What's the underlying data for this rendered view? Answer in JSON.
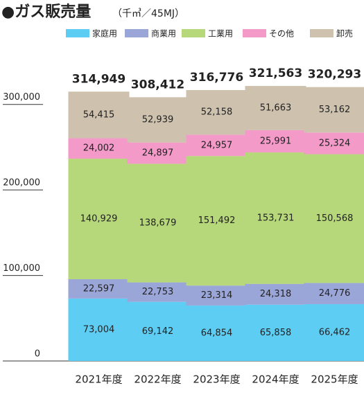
{
  "chart_data": {
    "type": "stacked-bar",
    "title": "●ガス販売量",
    "subtitle": "（千㎥／45MJ）",
    "categories": [
      "2021年度",
      "2022年度",
      "2023年度",
      "2024年度",
      "2025年度"
    ],
    "series": [
      {
        "name": "家庭用",
        "color": "#5ecdf3",
        "values": [
          73004,
          69142,
          64854,
          65858,
          66462
        ],
        "value_labels": [
          "73,004",
          "69,142",
          "64,854",
          "65,858",
          "66,462"
        ]
      },
      {
        "name": "商業用",
        "color": "#9ba6d8",
        "values": [
          22597,
          22753,
          23314,
          24318,
          24776
        ],
        "value_labels": [
          "22,597",
          "22,753",
          "23,314",
          "24,318",
          "24,776"
        ]
      },
      {
        "name": "工業用",
        "color": "#b6d77a",
        "values": [
          140929,
          138679,
          151492,
          153731,
          150568
        ],
        "value_labels": [
          "140,929",
          "138,679",
          "151,492",
          "153,731",
          "150,568"
        ]
      },
      {
        "name": "その他",
        "color": "#f39ac9",
        "values": [
          24002,
          24897,
          24957,
          25991,
          25324
        ],
        "value_labels": [
          "24,002",
          "24,897",
          "24,957",
          "25,991",
          "25,324"
        ]
      },
      {
        "name": "卸売",
        "color": "#cec1ae",
        "values": [
          54415,
          52939,
          52158,
          51663,
          53162
        ],
        "value_labels": [
          "54,415",
          "52,939",
          "52,158",
          "51,663",
          "53,162"
        ]
      }
    ],
    "totals": {
      "values": [
        314949,
        308412,
        316776,
        321563,
        320293
      ],
      "value_labels": [
        "314,949",
        "308,412",
        "316,776",
        "321,563",
        "320,293"
      ]
    },
    "ylim": [
      0,
      350000
    ],
    "yticks": [
      0,
      {
        "value": 100000,
        "label": "100,000"
      },
      {
        "value": 200000,
        "label": "200,000"
      },
      {
        "value": 300000,
        "label": "300,000"
      }
    ],
    "legend": "top-right"
  }
}
